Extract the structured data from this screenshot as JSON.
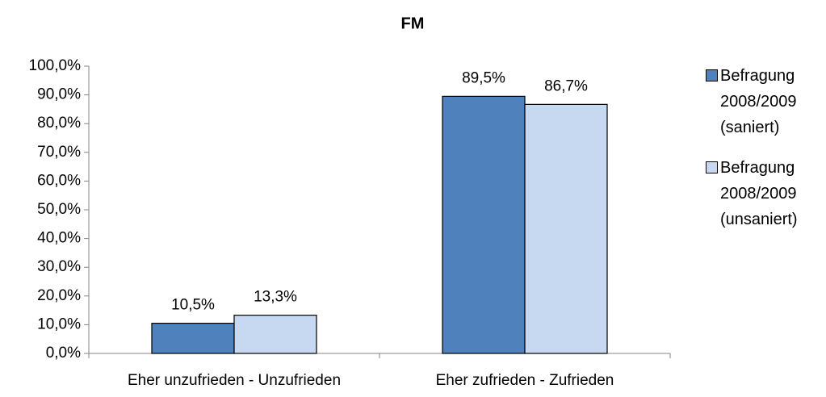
{
  "chart_data": {
    "type": "bar",
    "title": "FM",
    "categories": [
      "Eher unzufrieden - Unzufrieden",
      "Eher zufrieden - Zufrieden"
    ],
    "series": [
      {
        "name": "Befragung 2008/2009 (saniert)",
        "color": "#4f81bd",
        "values": [
          10.5,
          89.5
        ],
        "value_labels": [
          "10,5%",
          "89,5%"
        ]
      },
      {
        "name": "Befragung 2008/2009 (unsaniert)",
        "color": "#c6d9f1",
        "values": [
          13.3,
          86.7
        ],
        "value_labels": [
          "13,3%",
          "86,7%"
        ]
      }
    ],
    "ylim": [
      0,
      100
    ],
    "yticks": [
      {
        "value": 0,
        "label": "0,0%"
      },
      {
        "value": 10,
        "label": "10,0%"
      },
      {
        "value": 20,
        "label": "20,0%"
      },
      {
        "value": 30,
        "label": "30,0%"
      },
      {
        "value": 40,
        "label": "40,0%"
      },
      {
        "value": 50,
        "label": "50,0%"
      },
      {
        "value": 60,
        "label": "60,0%"
      },
      {
        "value": 70,
        "label": "70,0%"
      },
      {
        "value": 80,
        "label": "80,0%"
      },
      {
        "value": 90,
        "label": "90,0%"
      },
      {
        "value": 100,
        "label": "100,0%"
      }
    ],
    "grid": false,
    "legend": "right"
  }
}
